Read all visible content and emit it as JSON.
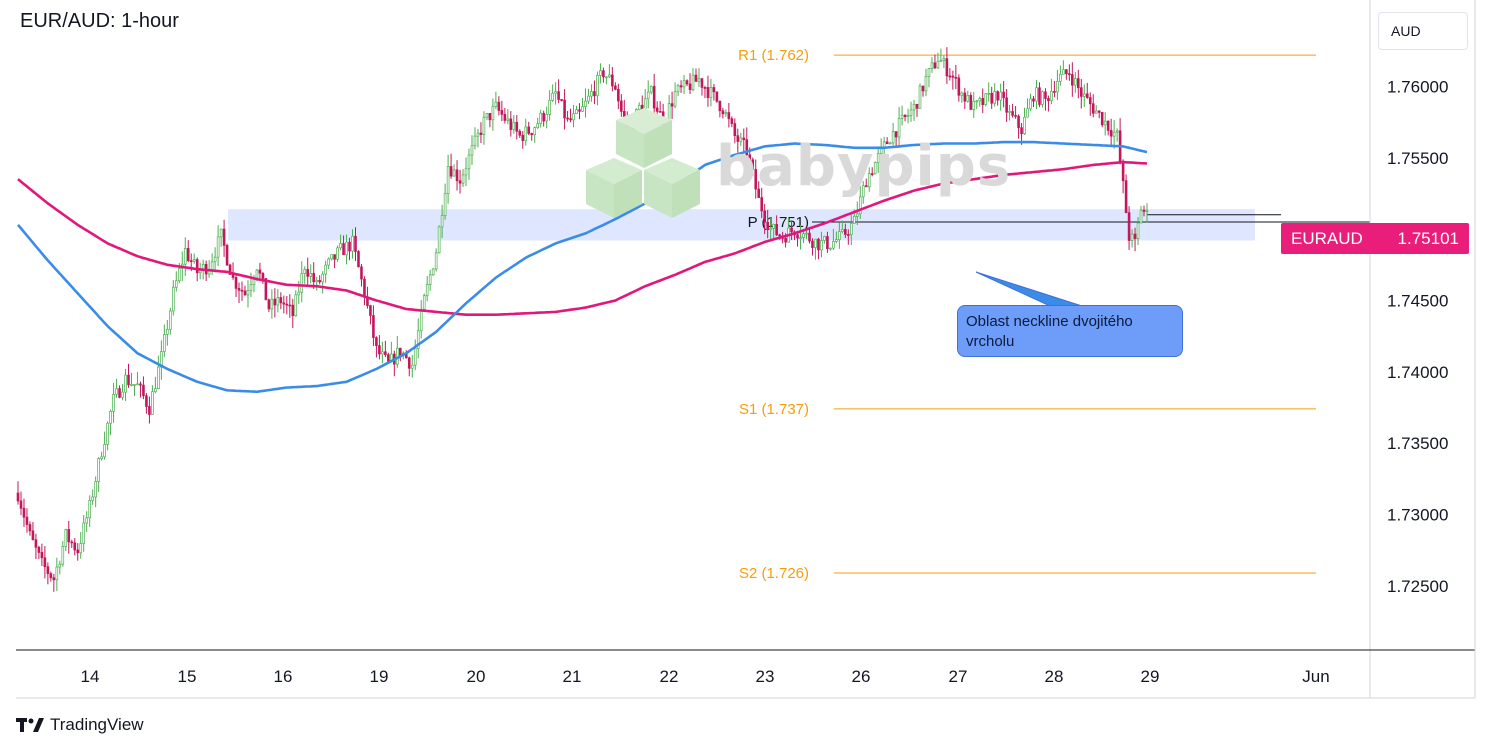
{
  "title": "EUR/AUD: 1-hour",
  "currency": "AUD",
  "watermark": "babypips",
  "price_tag": {
    "symbol": "EURAUD",
    "price": "1.75101"
  },
  "annotation": {
    "line1": "Oblast neckline dvojitého",
    "line2": "vrcholu"
  },
  "footer": {
    "brand": "TradingView"
  },
  "colors": {
    "up": "#4caf50",
    "down": "#c2185b",
    "candle_body_up": "#ffffff",
    "ma_blue": "#3b8ce8",
    "ma_magenta": "#e0187c",
    "level": "#f59e0b",
    "zone": "#dfe6ff",
    "accent": "#e91e7a"
  },
  "chart_data": {
    "type": "candlestick",
    "ylim": [
      1.7205,
      1.7655
    ],
    "y_ticks": [
      {
        "value": 1.76,
        "label": "1.76000"
      },
      {
        "value": 1.755,
        "label": "1.75500"
      },
      {
        "value": 1.75,
        "label": "1.75000"
      },
      {
        "value": 1.745,
        "label": "1.74500"
      },
      {
        "value": 1.74,
        "label": "1.74000"
      },
      {
        "value": 1.735,
        "label": "1.73500"
      },
      {
        "value": 1.73,
        "label": "1.73000"
      },
      {
        "value": 1.725,
        "label": "1.72500"
      }
    ],
    "x_ticks": [
      "14",
      "15",
      "16",
      "19",
      "20",
      "21",
      "22",
      "23",
      "26",
      "27",
      "28",
      "29",
      "Jun"
    ],
    "levels": [
      {
        "name": "R1",
        "label": "R1 (1.762)",
        "value": 1.7622
      },
      {
        "name": "P",
        "label": "P (1.751)",
        "value": 1.7505
      },
      {
        "name": "S1",
        "label": "S1 (1.737)",
        "value": 1.7374
      },
      {
        "name": "S2",
        "label": "S2 (1.726)",
        "value": 1.7259
      }
    ],
    "current_price": 1.75101,
    "zone": {
      "low": 1.7492,
      "high": 1.7514
    },
    "close_anchors": [
      [
        0,
        1.7315
      ],
      [
        4,
        1.7285
      ],
      [
        8,
        1.7265
      ],
      [
        12,
        1.7255
      ],
      [
        16,
        1.7285
      ],
      [
        20,
        1.7275
      ],
      [
        24,
        1.7305
      ],
      [
        28,
        1.7345
      ],
      [
        32,
        1.738
      ],
      [
        36,
        1.7395
      ],
      [
        40,
        1.739
      ],
      [
        44,
        1.7375
      ],
      [
        48,
        1.741
      ],
      [
        52,
        1.7455
      ],
      [
        56,
        1.7485
      ],
      [
        60,
        1.747
      ],
      [
        64,
        1.7475
      ],
      [
        68,
        1.7495
      ],
      [
        72,
        1.7465
      ],
      [
        76,
        1.7455
      ],
      [
        80,
        1.7475
      ],
      [
        84,
        1.7445
      ],
      [
        88,
        1.745
      ],
      [
        92,
        1.744
      ],
      [
        96,
        1.7475
      ],
      [
        100,
        1.746
      ],
      [
        104,
        1.7475
      ],
      [
        108,
        1.7485
      ],
      [
        112,
        1.749
      ],
      [
        116,
        1.7455
      ],
      [
        120,
        1.7415
      ],
      [
        124,
        1.7405
      ],
      [
        128,
        1.7415
      ],
      [
        132,
        1.7405
      ],
      [
        136,
        1.745
      ],
      [
        140,
        1.7485
      ],
      [
        144,
        1.7545
      ],
      [
        148,
        1.7535
      ],
      [
        152,
        1.7555
      ],
      [
        156,
        1.7575
      ],
      [
        160,
        1.7585
      ],
      [
        164,
        1.7575
      ],
      [
        168,
        1.7565
      ],
      [
        172,
        1.757
      ],
      [
        176,
        1.758
      ],
      [
        180,
        1.7595
      ],
      [
        184,
        1.7575
      ],
      [
        188,
        1.758
      ],
      [
        192,
        1.7595
      ],
      [
        196,
        1.761
      ],
      [
        200,
        1.76
      ],
      [
        204,
        1.7565
      ],
      [
        208,
        1.7585
      ],
      [
        212,
        1.7595
      ],
      [
        216,
        1.7575
      ],
      [
        220,
        1.7595
      ],
      [
        224,
        1.76
      ],
      [
        228,
        1.7605
      ],
      [
        232,
        1.7595
      ],
      [
        236,
        1.7585
      ],
      [
        240,
        1.7565
      ],
      [
        244,
        1.7555
      ],
      [
        248,
        1.752
      ],
      [
        252,
        1.75
      ],
      [
        256,
        1.7495
      ],
      [
        260,
        1.75
      ],
      [
        264,
        1.7495
      ],
      [
        268,
        1.749
      ],
      [
        272,
        1.749
      ],
      [
        276,
        1.7495
      ],
      [
        280,
        1.7505
      ],
      [
        284,
        1.7535
      ],
      [
        288,
        1.755
      ],
      [
        292,
        1.7565
      ],
      [
        296,
        1.7575
      ],
      [
        300,
        1.7585
      ],
      [
        304,
        1.7605
      ],
      [
        308,
        1.762
      ],
      [
        312,
        1.761
      ],
      [
        316,
        1.7595
      ],
      [
        320,
        1.7585
      ],
      [
        324,
        1.759
      ],
      [
        328,
        1.7595
      ],
      [
        332,
        1.758
      ],
      [
        336,
        1.757
      ],
      [
        340,
        1.7595
      ],
      [
        344,
        1.759
      ],
      [
        348,
        1.7605
      ],
      [
        352,
        1.761
      ],
      [
        356,
        1.7595
      ],
      [
        360,
        1.7585
      ],
      [
        364,
        1.7575
      ],
      [
        368,
        1.7565
      ],
      [
        372,
        1.7495
      ],
      [
        374,
        1.749
      ],
      [
        376,
        1.7515
      ],
      [
        378,
        1.751
      ]
    ],
    "ma_blue": [
      [
        0,
        1.7503
      ],
      [
        10,
        1.7478
      ],
      [
        20,
        1.7455
      ],
      [
        30,
        1.7432
      ],
      [
        40,
        1.7413
      ],
      [
        50,
        1.7402
      ],
      [
        60,
        1.7393
      ],
      [
        70,
        1.7387
      ],
      [
        80,
        1.7386
      ],
      [
        90,
        1.7389
      ],
      [
        100,
        1.739
      ],
      [
        110,
        1.7393
      ],
      [
        120,
        1.7402
      ],
      [
        130,
        1.7413
      ],
      [
        140,
        1.7428
      ],
      [
        150,
        1.7448
      ],
      [
        160,
        1.7466
      ],
      [
        170,
        1.748
      ],
      [
        180,
        1.749
      ],
      [
        190,
        1.7497
      ],
      [
        200,
        1.7507
      ],
      [
        210,
        1.7518
      ],
      [
        220,
        1.753
      ],
      [
        230,
        1.7545
      ],
      [
        240,
        1.7552
      ],
      [
        250,
        1.7558
      ],
      [
        260,
        1.756
      ],
      [
        270,
        1.7559
      ],
      [
        280,
        1.7557
      ],
      [
        290,
        1.7557
      ],
      [
        300,
        1.7559
      ],
      [
        310,
        1.756
      ],
      [
        320,
        1.756
      ],
      [
        330,
        1.7561
      ],
      [
        340,
        1.7561
      ],
      [
        350,
        1.756
      ],
      [
        360,
        1.7559
      ],
      [
        370,
        1.7558
      ],
      [
        378,
        1.7554
      ]
    ],
    "ma_magenta": [
      [
        0,
        1.7535
      ],
      [
        10,
        1.7518
      ],
      [
        20,
        1.7503
      ],
      [
        30,
        1.749
      ],
      [
        40,
        1.7481
      ],
      [
        50,
        1.7475
      ],
      [
        60,
        1.7472
      ],
      [
        70,
        1.747
      ],
      [
        80,
        1.7465
      ],
      [
        90,
        1.7461
      ],
      [
        100,
        1.746
      ],
      [
        110,
        1.7457
      ],
      [
        120,
        1.745
      ],
      [
        130,
        1.7444
      ],
      [
        140,
        1.7442
      ],
      [
        150,
        1.744
      ],
      [
        160,
        1.744
      ],
      [
        170,
        1.7441
      ],
      [
        180,
        1.7442
      ],
      [
        190,
        1.7445
      ],
      [
        200,
        1.745
      ],
      [
        210,
        1.746
      ],
      [
        220,
        1.7468
      ],
      [
        230,
        1.7477
      ],
      [
        240,
        1.7483
      ],
      [
        250,
        1.7491
      ],
      [
        260,
        1.7497
      ],
      [
        270,
        1.7504
      ],
      [
        280,
        1.7512
      ],
      [
        290,
        1.752
      ],
      [
        300,
        1.7527
      ],
      [
        310,
        1.7532
      ],
      [
        320,
        1.7535
      ],
      [
        330,
        1.7538
      ],
      [
        340,
        1.754
      ],
      [
        350,
        1.7542
      ],
      [
        360,
        1.7545
      ],
      [
        370,
        1.7547
      ],
      [
        378,
        1.7546
      ]
    ]
  }
}
